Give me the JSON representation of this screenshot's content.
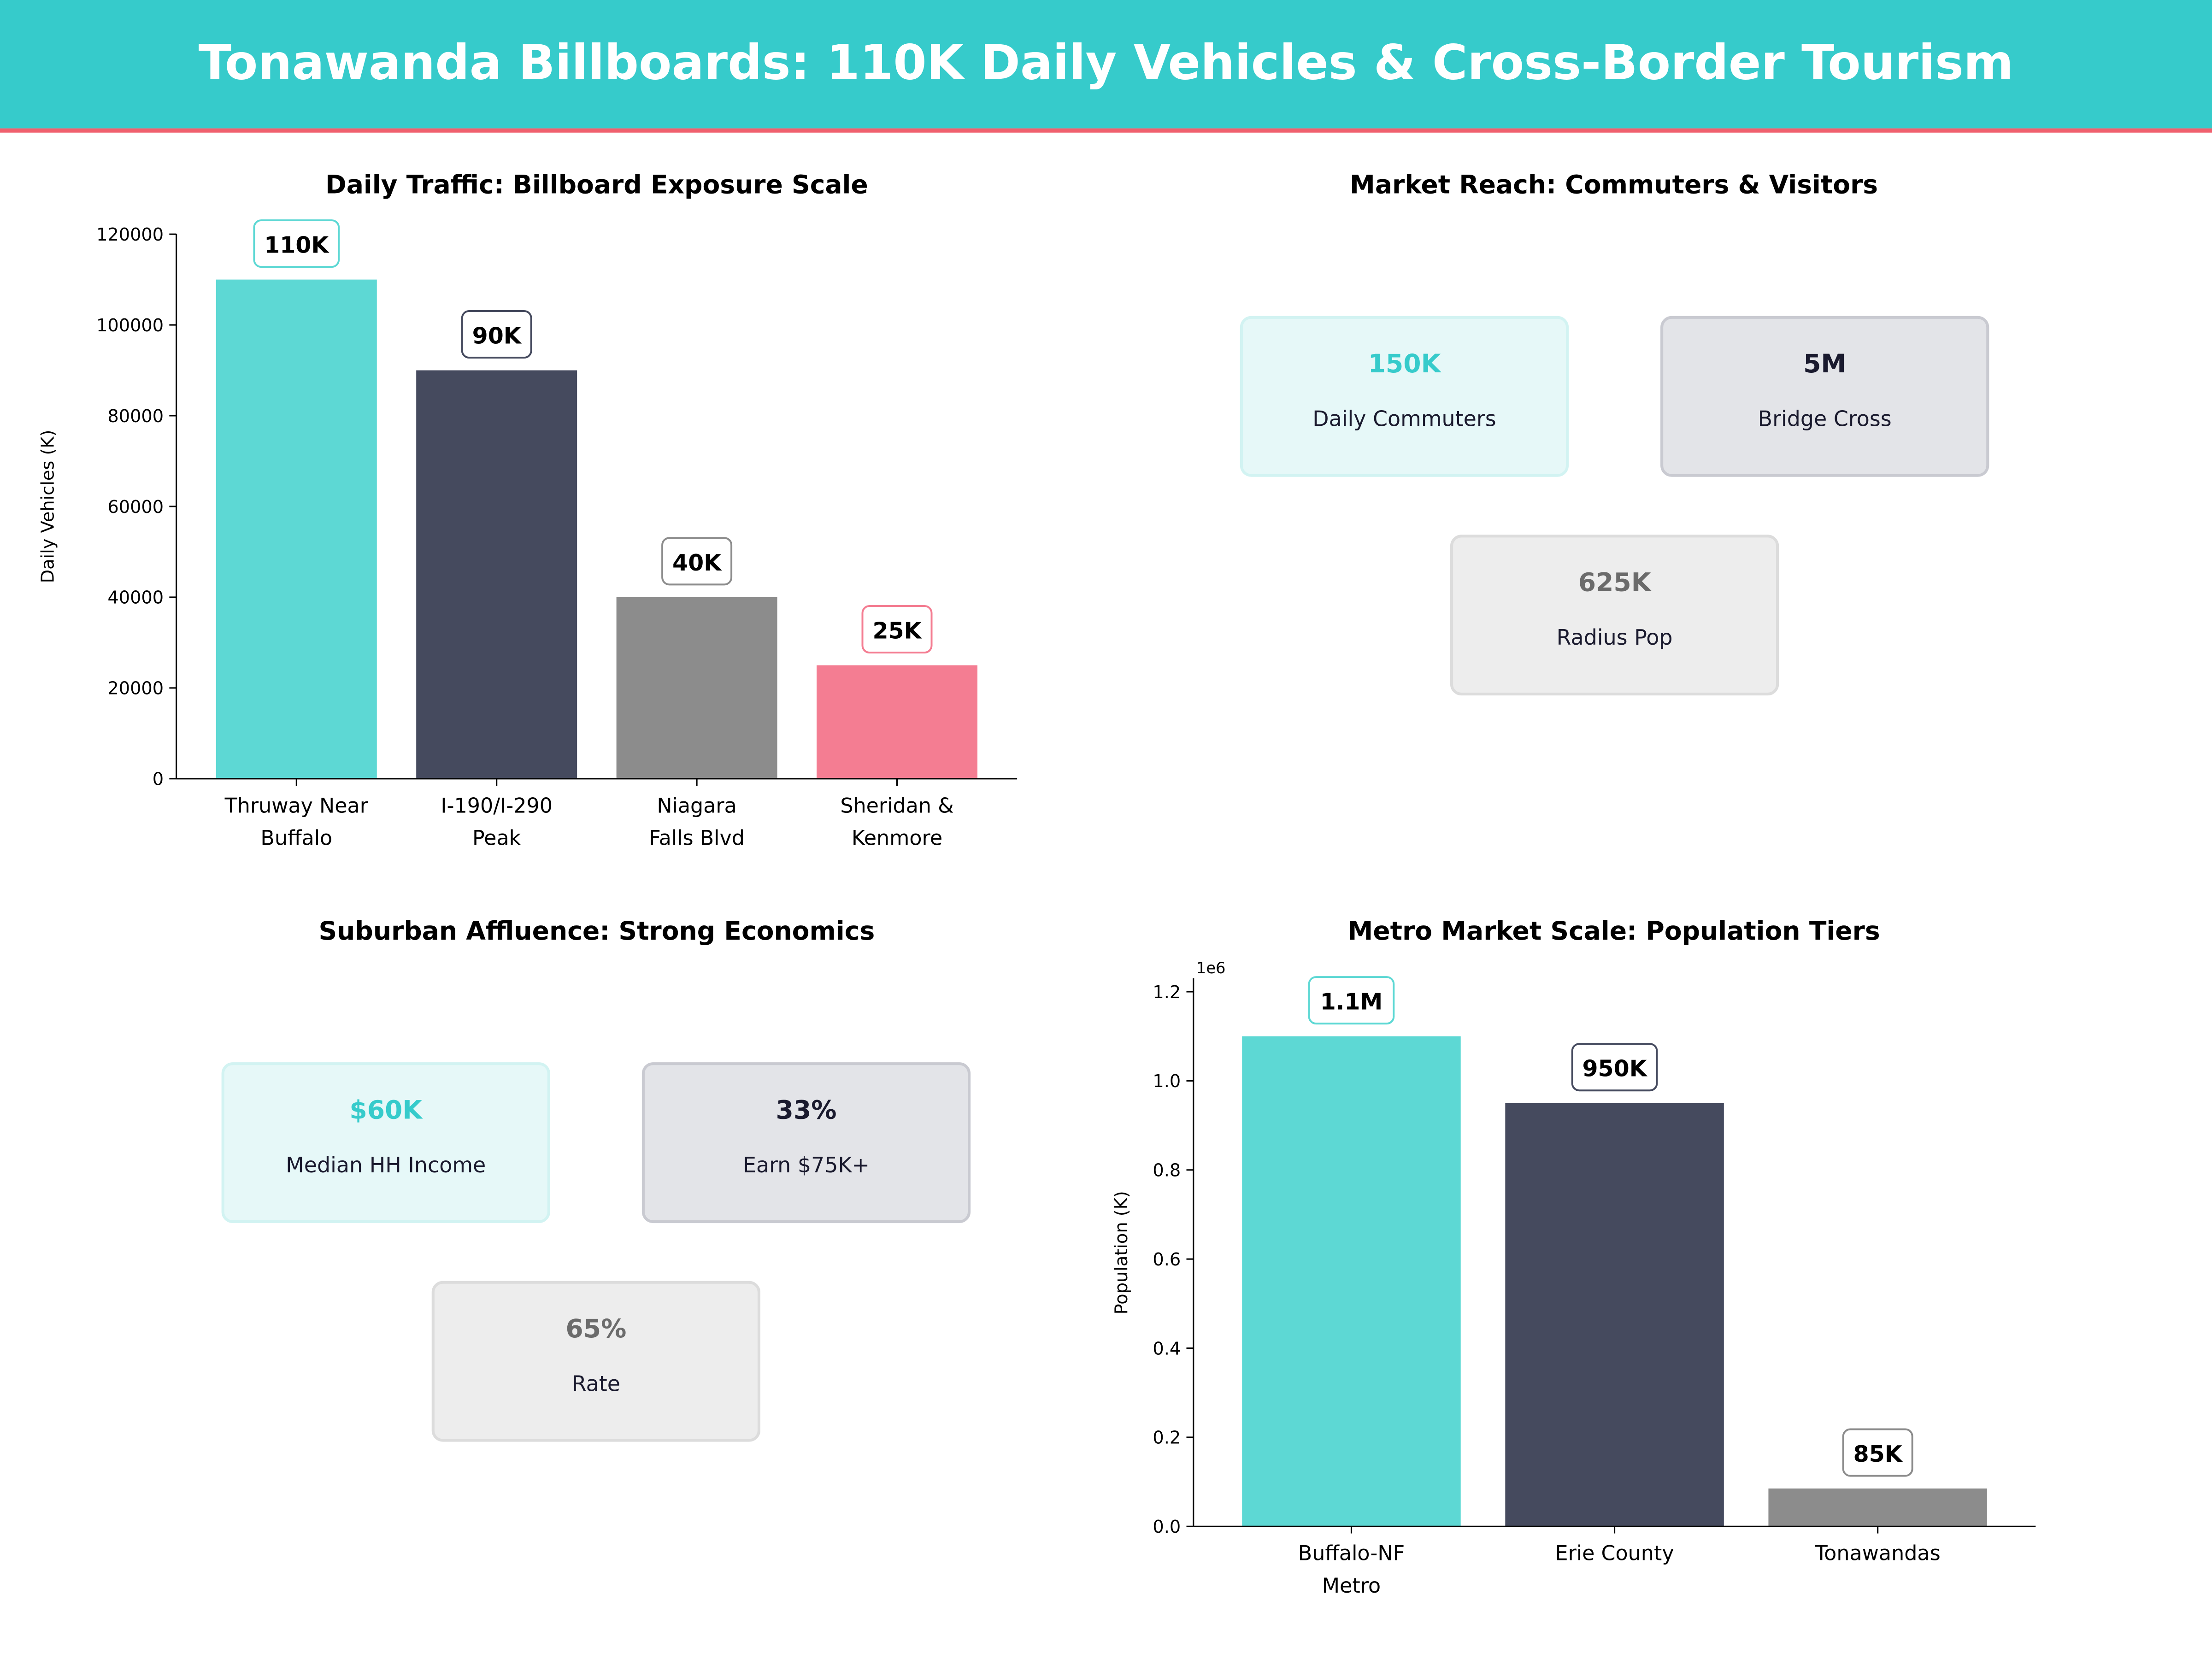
{
  "header": {
    "title": "Tonawanda Billboards: 110K Daily Vehicles & Cross-Border Tourism",
    "bg": "#36CBCB",
    "accent": "#F0606E"
  },
  "chart_data": [
    {
      "type": "bar",
      "title": "Daily Traffic: Billboard Exposure Scale",
      "ylabel": "Daily Vehicles (K)",
      "xlabel": "",
      "categories": [
        [
          "Thruway Near",
          "Buffalo"
        ],
        [
          "I-190/I-290",
          "Peak"
        ],
        [
          "Niagara",
          "Falls Blvd"
        ],
        [
          "Sheridan &",
          "Kenmore"
        ]
      ],
      "values": [
        110000,
        90000,
        40000,
        25000
      ],
      "labels": [
        "110K",
        "90K",
        "40K",
        "25K"
      ],
      "colors": [
        "#5DD8D4",
        "#454A5E",
        "#8C8C8C",
        "#F47D92"
      ],
      "ylim": [
        0,
        120000
      ],
      "yticks": [
        "0",
        "20000",
        "40000",
        "60000",
        "80000",
        "100000",
        "120000"
      ],
      "ytick_step": 20000,
      "grid": false
    },
    {
      "type": "bar",
      "title": "Metro Market Scale: Population Tiers",
      "ylabel": "Population (K)",
      "xlabel": "",
      "offset_text": "1e6",
      "categories": [
        [
          "Buffalo-NF",
          "Metro"
        ],
        [
          "Erie County"
        ],
        [
          "Tonawandas"
        ]
      ],
      "values": [
        1100000,
        950000,
        85000
      ],
      "labels": [
        "1.1M",
        "950K",
        "85K"
      ],
      "colors": [
        "#5DD8D4",
        "#454A5E",
        "#8C8C8C"
      ],
      "ylim": [
        0,
        1230000
      ],
      "yticks": [
        "0.0",
        "0.2",
        "0.4",
        "0.6",
        "0.8",
        "1.0",
        "1.2"
      ],
      "ytick_step": 200000,
      "grid": false
    }
  ],
  "market_reach": {
    "title": "Market Reach: Commuters & Visitors",
    "cards": [
      {
        "value": "150K",
        "label": "Daily Commuters",
        "color": "#36CBCB"
      },
      {
        "value": "5M",
        "label": "Bridge Cross",
        "color": "#1a1a2e"
      },
      {
        "value": "625K",
        "label": "Radius Pop",
        "color": "#6b6b6b"
      }
    ]
  },
  "affluence": {
    "title": "Suburban Affluence: Strong Economics",
    "cards": [
      {
        "value": "$60K",
        "label": "Median HH Income",
        "color": "#36CBCB"
      },
      {
        "value": "33%",
        "label": "Earn $75K+",
        "color": "#1a1a2e"
      },
      {
        "value": "65%",
        "label": "Rate",
        "color": "#6b6b6b"
      }
    ]
  }
}
